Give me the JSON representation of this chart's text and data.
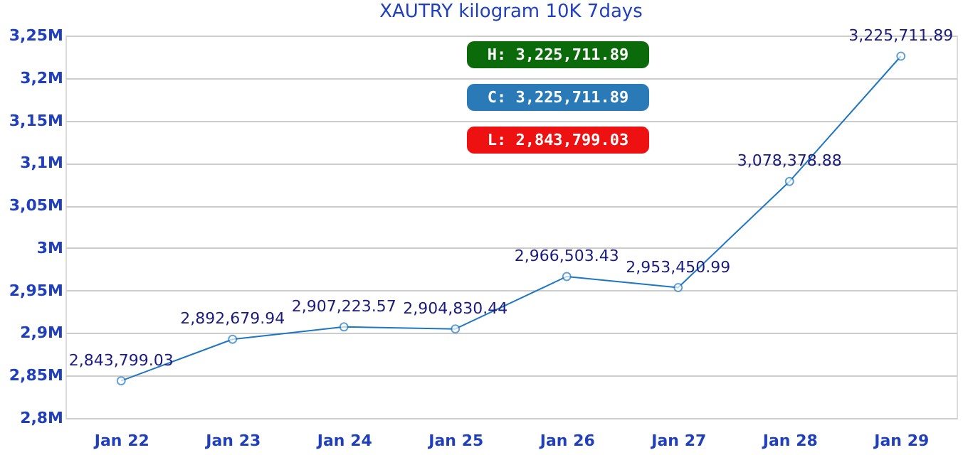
{
  "chart_data": {
    "type": "line",
    "title": "XAUTRY kilogram 10K 7days",
    "categories": [
      "Jan 22",
      "Jan 23",
      "Jan 24",
      "Jan 25",
      "Jan 26",
      "Jan 27",
      "Jan 28",
      "Jan 29"
    ],
    "series": [
      {
        "color": "#1f77c4",
        "values": [
          2843799.03,
          2892679.94,
          2907223.57,
          2904830.44,
          2966503.43,
          2953450.99,
          3078378.88,
          3225711.89
        ]
      }
    ],
    "ylim": [
      2800000,
      3250000
    ],
    "yticks": [
      {
        "value": 2800000,
        "label": "2,8M"
      },
      {
        "value": 2850000,
        "label": "2,85M"
      },
      {
        "value": 2900000,
        "label": "2,9M"
      },
      {
        "value": 2950000,
        "label": "2,95M"
      },
      {
        "value": 3000000,
        "label": "3M"
      },
      {
        "value": 3050000,
        "label": "3,05M"
      },
      {
        "value": 3100000,
        "label": "3,1M"
      },
      {
        "value": 3150000,
        "label": "3,15M"
      },
      {
        "value": 3200000,
        "label": "3,2M"
      },
      {
        "value": 3250000,
        "label": "3,25M"
      }
    ],
    "annotations": [
      "H: 3,225,711.89",
      "C: 3,225,711.89",
      "L: 2,843,799.03"
    ],
    "value_labels": [
      "2,843,799.03",
      "2,892,679.94",
      "2,907,223.57",
      "2,904,830.44",
      "2,966,503.43",
      "2,953,450.99",
      "3,078,378.88",
      "3,225,711.89"
    ],
    "grid": "y",
    "marker": "circle",
    "line_style": "solid"
  }
}
